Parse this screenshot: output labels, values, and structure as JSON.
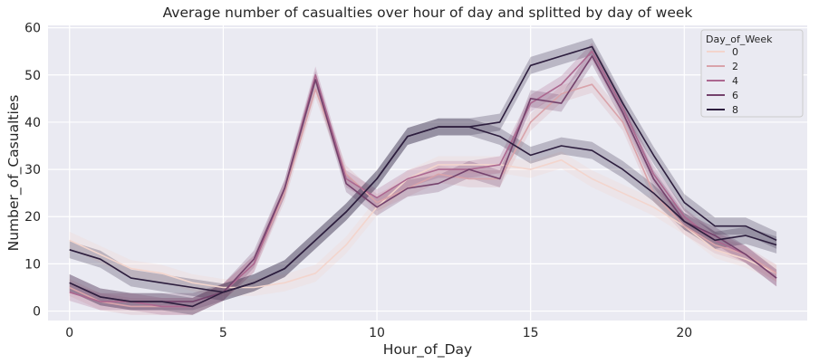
{
  "chart_data": {
    "type": "line",
    "title": "Average number of casualties  over hour of day and splitted by  day of week",
    "xlabel": "Hour_of_Day",
    "ylabel": "Number_of_Casualties",
    "xlim": [
      -0.7,
      24.0
    ],
    "ylim": [
      -2,
      60.5
    ],
    "xticks": [
      0,
      5,
      10,
      15,
      20
    ],
    "yticks": [
      0,
      10,
      20,
      30,
      40,
      50,
      60
    ],
    "grid": true,
    "legend": {
      "title": "Day_of_Week",
      "position": "top-right"
    },
    "x": [
      0,
      1,
      2,
      3,
      4,
      5,
      6,
      7,
      8,
      9,
      10,
      11,
      12,
      13,
      14,
      15,
      16,
      17,
      18,
      19,
      20,
      21,
      22,
      23
    ],
    "series": [
      {
        "name": "0",
        "color": "#f3d5cd",
        "values": [
          15,
          12,
          9,
          8,
          6,
          5,
          5,
          6,
          8,
          14,
          22,
          28,
          31,
          31,
          31,
          30,
          32,
          28,
          25,
          22,
          18,
          13,
          11,
          8
        ]
      },
      {
        "name": "2",
        "color": "#d9a3aa",
        "values": [
          5,
          2,
          1,
          1,
          1,
          4,
          10,
          25,
          47,
          29,
          23,
          26,
          29,
          28,
          28,
          40,
          46,
          48,
          40,
          25,
          18,
          14,
          12,
          8
        ]
      },
      {
        "name": "4",
        "color": "#ac6890",
        "values": [
          4,
          2,
          2,
          1,
          1,
          4,
          10,
          26,
          50,
          28,
          24,
          28,
          30,
          30,
          31,
          44,
          48,
          55,
          43,
          29,
          20,
          15,
          12,
          7
        ]
      },
      {
        "name": "6",
        "color": "#74426c",
        "values": [
          6,
          3,
          2,
          2,
          2,
          4,
          11,
          26,
          49,
          27,
          22,
          26,
          27,
          30,
          28,
          45,
          44,
          54,
          42,
          28,
          19,
          16,
          12,
          7
        ]
      },
      {
        "name": "8",
        "color": "#2d1e3e",
        "values": [
          13,
          11,
          7,
          6,
          5,
          4,
          6,
          9,
          15,
          21,
          28,
          37,
          39,
          39,
          40,
          52,
          54,
          56,
          44,
          33,
          23,
          18,
          18,
          15
        ]
      },
      {
        "name": "",
        "color": "#2d1e3e",
        "values": [
          6,
          3,
          2,
          2,
          1,
          4,
          6,
          9,
          15,
          21,
          28,
          37,
          39,
          39,
          37,
          33,
          35,
          34,
          30,
          25,
          19,
          15,
          16,
          14
        ]
      }
    ]
  }
}
